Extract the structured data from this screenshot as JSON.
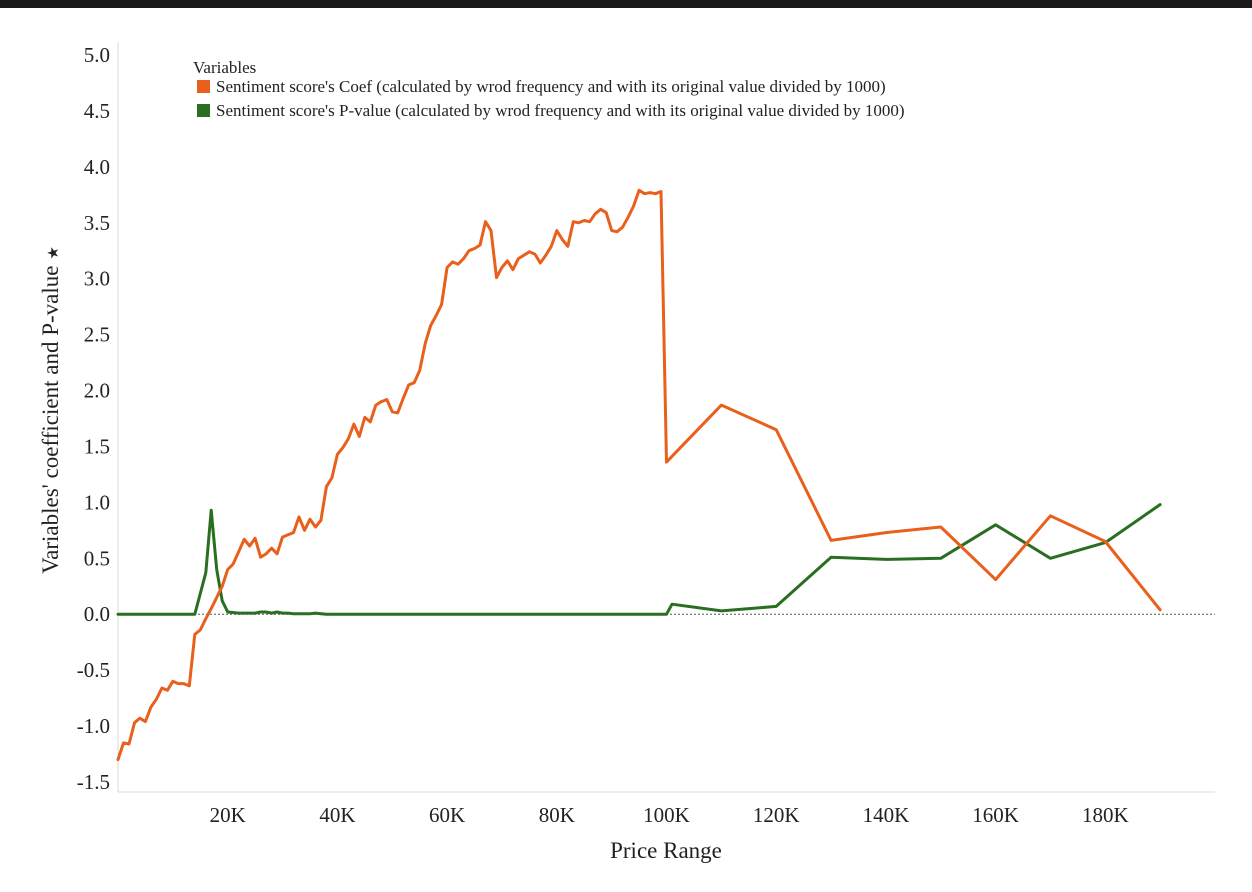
{
  "chart_data": {
    "type": "line",
    "title": "",
    "xlabel": "Price Range",
    "ylabel": "Variables' coefficient and P-value",
    "ylabel_marker": "★",
    "legend": {
      "title": "Variables",
      "placement": "top-left"
    },
    "xlim": [
      0,
      200000
    ],
    "ylim": [
      -1.5,
      5.0
    ],
    "x_ticks": [
      20000,
      40000,
      60000,
      80000,
      100000,
      120000,
      140000,
      160000,
      180000
    ],
    "x_tick_labels": [
      "20K",
      "40K",
      "60K",
      "80K",
      "100K",
      "120K",
      "140K",
      "160K",
      "180K"
    ],
    "y_ticks": [
      -1.5,
      -1.0,
      -0.5,
      0.0,
      0.5,
      1.0,
      1.5,
      2.0,
      2.5,
      3.0,
      3.5,
      4.0,
      4.5,
      5.0
    ],
    "y_tick_labels": [
      "-1.5",
      "-1.0",
      "-0.5",
      "0.0",
      "0.5",
      "1.0",
      "1.5",
      "2.0",
      "2.5",
      "3.0",
      "3.5",
      "4.0",
      "4.5",
      "5.0"
    ],
    "zero_line": true,
    "grid": false,
    "series": [
      {
        "name": "Sentiment score's Coef (calculated by wrod frequency and with its original value divided by 1000)",
        "color": "#e8601c",
        "x": [
          0,
          1000,
          2000,
          3000,
          4000,
          5000,
          6000,
          7000,
          8000,
          9000,
          10000,
          11000,
          12000,
          13000,
          14000,
          15000,
          16000,
          17000,
          18000,
          19000,
          20000,
          21000,
          22000,
          23000,
          24000,
          25000,
          26000,
          27000,
          28000,
          29000,
          30000,
          31000,
          32000,
          33000,
          34000,
          35000,
          36000,
          37000,
          38000,
          39000,
          40000,
          41000,
          42000,
          43000,
          44000,
          45000,
          46000,
          47000,
          48000,
          49000,
          50000,
          51000,
          52000,
          53000,
          54000,
          55000,
          56000,
          57000,
          58000,
          59000,
          60000,
          61000,
          62000,
          63000,
          64000,
          65000,
          66000,
          67000,
          68000,
          69000,
          70000,
          71000,
          72000,
          73000,
          74000,
          75000,
          76000,
          77000,
          78000,
          79000,
          80000,
          81000,
          82000,
          83000,
          84000,
          85000,
          86000,
          87000,
          88000,
          89000,
          90000,
          91000,
          92000,
          93000,
          94000,
          95000,
          96000,
          97000,
          98000,
          99000,
          100000,
          110000,
          120000,
          130000,
          140000,
          150000,
          160000,
          170000,
          180000,
          190000
        ],
        "values": [
          -1.3,
          -1.15,
          -1.16,
          -0.97,
          -0.93,
          -0.96,
          -0.83,
          -0.76,
          -0.66,
          -0.68,
          -0.6,
          -0.62,
          -0.62,
          -0.64,
          -0.18,
          -0.14,
          -0.04,
          0.05,
          0.15,
          0.25,
          0.4,
          0.45,
          0.56,
          0.67,
          0.61,
          0.68,
          0.51,
          0.54,
          0.59,
          0.54,
          0.69,
          0.71,
          0.73,
          0.87,
          0.75,
          0.85,
          0.78,
          0.84,
          1.14,
          1.22,
          1.43,
          1.49,
          1.57,
          1.7,
          1.59,
          1.76,
          1.72,
          1.87,
          1.9,
          1.92,
          1.81,
          1.8,
          1.93,
          2.05,
          2.07,
          2.18,
          2.42,
          2.58,
          2.67,
          2.77,
          3.1,
          3.15,
          3.13,
          3.18,
          3.25,
          3.27,
          3.3,
          3.51,
          3.43,
          3.01,
          3.1,
          3.16,
          3.08,
          3.18,
          3.21,
          3.24,
          3.22,
          3.14,
          3.21,
          3.29,
          3.43,
          3.35,
          3.29,
          3.51,
          3.5,
          3.52,
          3.51,
          3.58,
          3.62,
          3.59,
          3.43,
          3.42,
          3.46,
          3.55,
          3.65,
          3.79,
          3.76,
          3.77,
          3.76,
          3.78,
          1.36,
          1.87,
          1.65,
          0.66,
          0.73,
          0.78,
          0.31,
          0.88,
          0.65,
          0.04
        ]
      },
      {
        "name": "Sentiment score's P-value (calculated by wrod frequency and with its original value divided by 1000)",
        "color": "#2a6e22",
        "x": [
          0,
          14000,
          16000,
          17000,
          18000,
          19000,
          20000,
          22000,
          24000,
          25000,
          26000,
          27000,
          28000,
          29000,
          30000,
          31000,
          32000,
          33000,
          34000,
          35000,
          36000,
          37000,
          38000,
          40000,
          60000,
          80000,
          100000,
          101000,
          110000,
          120000,
          130000,
          140000,
          150000,
          160000,
          170000,
          180000,
          190000
        ],
        "values": [
          0.0,
          0.0,
          0.37,
          0.93,
          0.4,
          0.12,
          0.02,
          0.01,
          0.01,
          0.01,
          0.02,
          0.02,
          0.01,
          0.02,
          0.01,
          0.01,
          0.005,
          0.005,
          0.005,
          0.005,
          0.01,
          0.005,
          0.0,
          0.0,
          0.0,
          0.0,
          0.0,
          0.09,
          0.03,
          0.07,
          0.51,
          0.49,
          0.5,
          0.8,
          0.5,
          0.64,
          0.98
        ]
      }
    ]
  }
}
